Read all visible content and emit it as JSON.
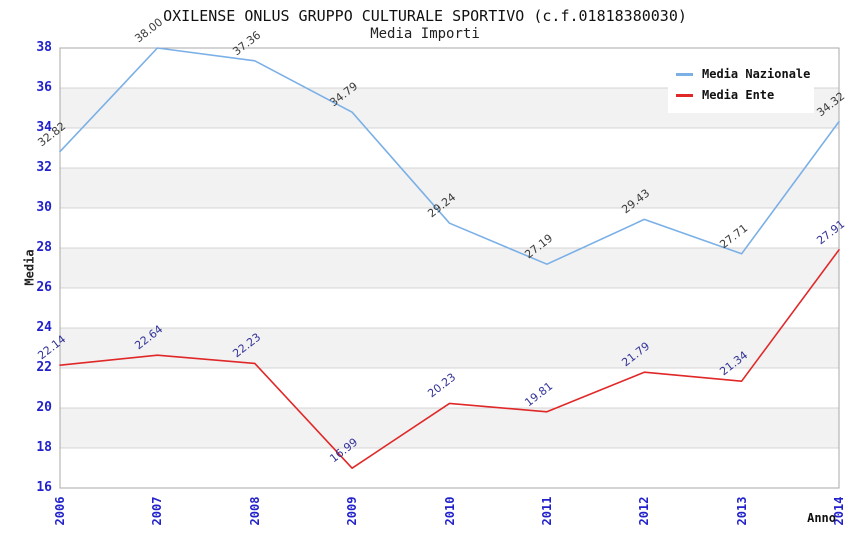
{
  "title": "OXILENSE ONLUS GRUPPO CULTURALE SPORTIVO (c.f.01818380030)",
  "subtitle": "Media Importi",
  "legend": [
    {
      "label": "Media Nazionale"
    },
    {
      "label": "Media Ente"
    }
  ],
  "chart_data": {
    "type": "line",
    "title": "OXILENSE ONLUS GRUPPO CULTURALE SPORTIVO (c.f.01818380030)",
    "subtitle": "Media Importi",
    "xlabel": "Anno",
    "ylabel": "Media",
    "x": [
      2006,
      2007,
      2008,
      2009,
      2010,
      2011,
      2012,
      2013,
      2014
    ],
    "series": [
      {
        "name": "Media Nazionale",
        "color": "#7bb0e7",
        "label_color": "#3a3a3a",
        "values": [
          32.82,
          38.0,
          37.36,
          34.79,
          29.24,
          27.19,
          29.43,
          27.71,
          34.32
        ]
      },
      {
        "name": "Media Ente",
        "color": "#e02828",
        "label_color": "#333399",
        "values": [
          22.14,
          22.64,
          22.23,
          16.99,
          20.23,
          19.81,
          21.79,
          21.34,
          27.91
        ]
      }
    ],
    "ylim": [
      16,
      38
    ],
    "ytick_step": 2,
    "grid": true,
    "legend_position": "top-right",
    "band_color": "#f2f2f2",
    "grid_color": "#d4d4d4",
    "frame_color": "#a8a8a8",
    "tick_color": "#2222cc",
    "value_label_decimals": 2
  }
}
